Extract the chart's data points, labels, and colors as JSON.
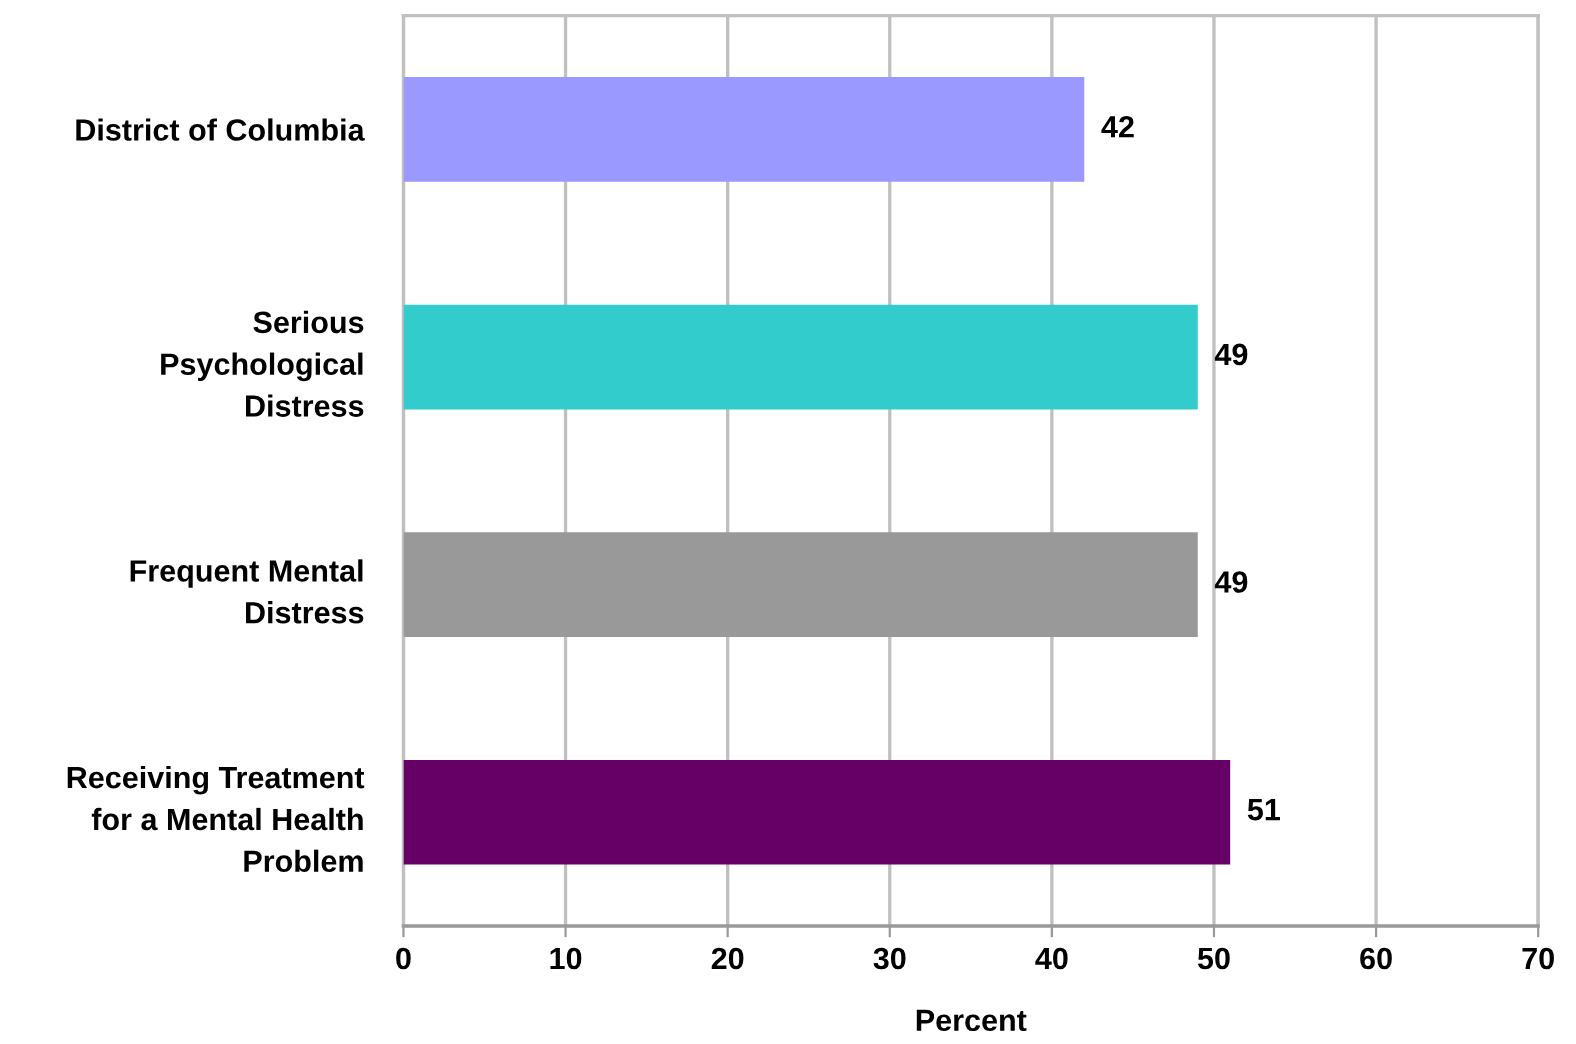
{
  "chart_data": {
    "type": "bar",
    "orientation": "horizontal",
    "categories": [
      "District of Columbia",
      "Serious\nPsychological\nDistress",
      "Frequent Mental\nDistress",
      "Receiving Treatment\nfor a Mental Health\nProblem"
    ],
    "values": [
      42,
      49,
      49,
      51
    ],
    "colors": [
      "#9999ff",
      "#33cccc",
      "#999999",
      "#660066"
    ],
    "xlabel": "Percent",
    "xlim": [
      0,
      70
    ],
    "xticks": [
      0,
      10,
      20,
      30,
      40,
      50,
      60,
      70
    ],
    "grid": "x",
    "data_labels": true
  }
}
